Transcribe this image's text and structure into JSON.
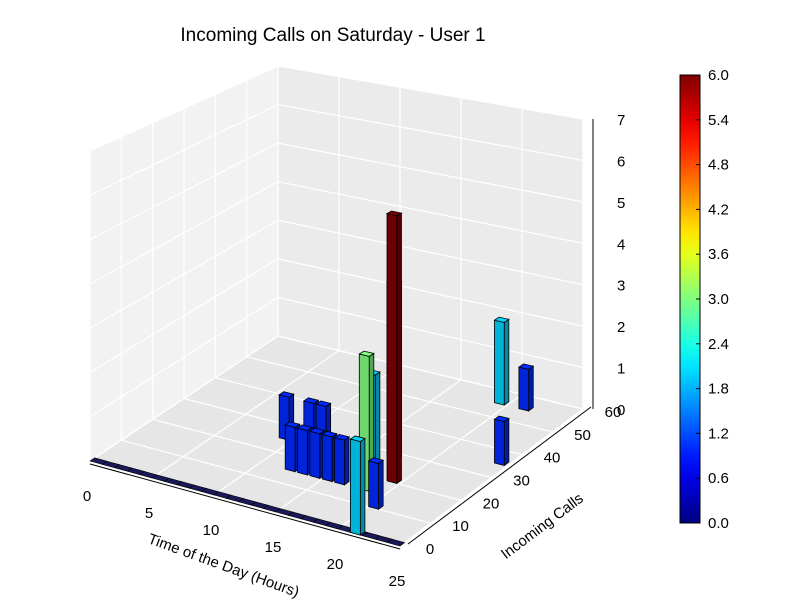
{
  "chart_data": {
    "type": "bar3d",
    "title": "Incoming Calls on Saturday - User 1",
    "xlabel": "Time of the Day (Hours)",
    "ylabel": "Incoming Calls",
    "zlabel": "",
    "xlim": [
      0,
      25
    ],
    "ylim": [
      0,
      60
    ],
    "zlim": [
      0,
      7
    ],
    "x_ticks": [
      "0",
      "5",
      "10",
      "15",
      "20",
      "25"
    ],
    "y_ticks": [
      "0",
      "10",
      "20",
      "30",
      "40",
      "50",
      "60"
    ],
    "z_ticks": [
      "0",
      "1",
      "2",
      "3",
      "4",
      "5",
      "6",
      "7"
    ],
    "colorbar": {
      "min": 0.0,
      "max": 6.0,
      "ticks": [
        "0.0",
        "0.6",
        "1.2",
        "1.8",
        "2.4",
        "3.0",
        "3.6",
        "4.2",
        "4.8",
        "5.4",
        "6.0"
      ]
    },
    "bars": [
      {
        "hour": 9,
        "calls": 25,
        "value": 1
      },
      {
        "hour": 11,
        "calls": 25,
        "value": 1
      },
      {
        "hour": 12,
        "calls": 25,
        "value": 1
      },
      {
        "hour": 12,
        "calls": 15,
        "value": 1
      },
      {
        "hour": 13,
        "calls": 15,
        "value": 1
      },
      {
        "hour": 14,
        "calls": 15,
        "value": 1
      },
      {
        "hour": 15,
        "calls": 15,
        "value": 1
      },
      {
        "hour": 16,
        "calls": 15,
        "value": 1
      },
      {
        "hour": 16,
        "calls": 25,
        "value": 2
      },
      {
        "hour": 17,
        "calls": 28,
        "value": 4
      },
      {
        "hour": 18,
        "calls": 15,
        "value": 3
      },
      {
        "hour": 19,
        "calls": 20,
        "value": 6
      },
      {
        "hour": 20,
        "calls": 10,
        "value": 1
      },
      {
        "hour": 21,
        "calls": 0,
        "value": 2
      },
      {
        "hour": 19,
        "calls": 55,
        "value": 2
      },
      {
        "hour": 21,
        "calls": 55,
        "value": 1
      },
      {
        "hour": 24,
        "calls": 35,
        "value": 1
      }
    ]
  }
}
